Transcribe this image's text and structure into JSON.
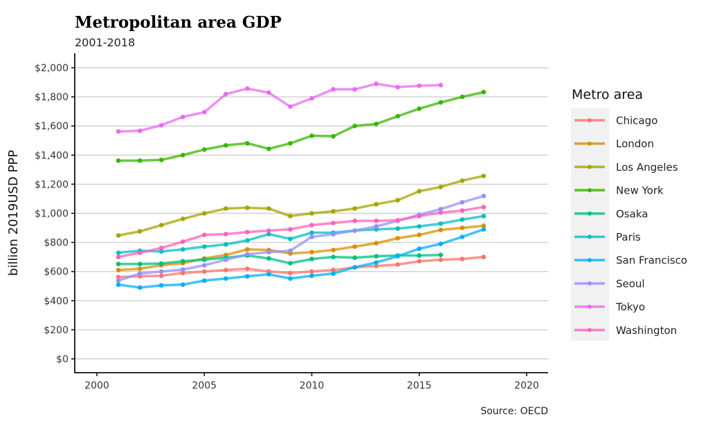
{
  "chart_data": {
    "type": "line",
    "title": "Metropolitan area GDP",
    "subtitle": "2001-2018",
    "xlabel": "",
    "ylabel": "billion 2019USD PPP",
    "caption": "Source: OECD",
    "xlim": [
      1999.0,
      2021.0
    ],
    "ylim": [
      -100,
      2100
    ],
    "xticks": [
      2000,
      2005,
      2010,
      2015,
      2020
    ],
    "xtick_labels": [
      "2000",
      "2005",
      "2010",
      "2015",
      "2020"
    ],
    "yticks": [
      0,
      200,
      400,
      600,
      800,
      1000,
      1200,
      1400,
      1600,
      1800,
      2000
    ],
    "ytick_labels": [
      "$0",
      "$200",
      "$400",
      "$600",
      "$800",
      "$1,000",
      "$1,200",
      "$1,400",
      "$1,600",
      "$1,800",
      "$2,000"
    ],
    "grid": "horizontal major",
    "legend": {
      "title": "Metro area",
      "position": "right"
    },
    "x": [
      2001,
      2002,
      2003,
      2004,
      2005,
      2006,
      2007,
      2008,
      2009,
      2010,
      2011,
      2012,
      2013,
      2014,
      2015,
      2016,
      2017,
      2018
    ],
    "series": [
      {
        "name": "Chicago",
        "color": "#F8766D",
        "values": [
          562,
          567,
          571,
          590,
          600,
          610,
          619,
          600,
          590,
          600,
          610,
          629,
          638,
          648,
          671,
          681,
          686,
          700
        ]
      },
      {
        "name": "London",
        "color": "#D89000",
        "values": [
          610,
          619,
          643,
          657,
          690,
          714,
          752,
          748,
          724,
          733,
          748,
          771,
          795,
          829,
          852,
          886,
          900,
          914
        ]
      },
      {
        "name": "Los Angeles",
        "color": "#A3A500",
        "values": [
          848,
          876,
          919,
          962,
          1000,
          1033,
          1038,
          1033,
          981,
          1000,
          1014,
          1033,
          1062,
          1090,
          1152,
          1181,
          1224,
          1257
        ]
      },
      {
        "name": "New York",
        "color": "#39B600",
        "values": [
          1362,
          1362,
          1367,
          1400,
          1438,
          1467,
          1481,
          1443,
          1481,
          1533,
          1529,
          1600,
          1614,
          1667,
          1719,
          1762,
          1800,
          1833
        ]
      },
      {
        "name": "Osaka",
        "color": "#00BF7D",
        "values": [
          652,
          652,
          655,
          671,
          681,
          695,
          710,
          690,
          657,
          686,
          700,
          695,
          705,
          710,
          710,
          714,
          null,
          null
        ]
      },
      {
        "name": "Paris",
        "color": "#00BFC4",
        "values": [
          729,
          743,
          738,
          752,
          771,
          786,
          814,
          857,
          824,
          867,
          867,
          881,
          890,
          895,
          910,
          929,
          957,
          981
        ]
      },
      {
        "name": "San Francisco",
        "color": "#00B0F6",
        "values": [
          510,
          490,
          505,
          510,
          538,
          552,
          567,
          581,
          552,
          571,
          586,
          629,
          662,
          705,
          757,
          790,
          838,
          890
        ]
      },
      {
        "name": "Seoul",
        "color": "#9590FF",
        "values": [
          538,
          586,
          600,
          614,
          643,
          681,
          719,
          733,
          743,
          838,
          857,
          881,
          910,
          948,
          990,
          1029,
          1076,
          1119
        ]
      },
      {
        "name": "Tokyo",
        "color": "#E76BF3",
        "values": [
          1562,
          1567,
          1605,
          1662,
          1695,
          1819,
          1857,
          1829,
          1733,
          1790,
          1852,
          1852,
          1890,
          1867,
          1876,
          1881,
          null,
          null
        ]
      },
      {
        "name": "Washington",
        "color": "#FF62BC",
        "values": [
          700,
          729,
          762,
          805,
          852,
          857,
          871,
          881,
          890,
          919,
          933,
          948,
          948,
          952,
          981,
          1005,
          1019,
          1043
        ]
      }
    ]
  }
}
